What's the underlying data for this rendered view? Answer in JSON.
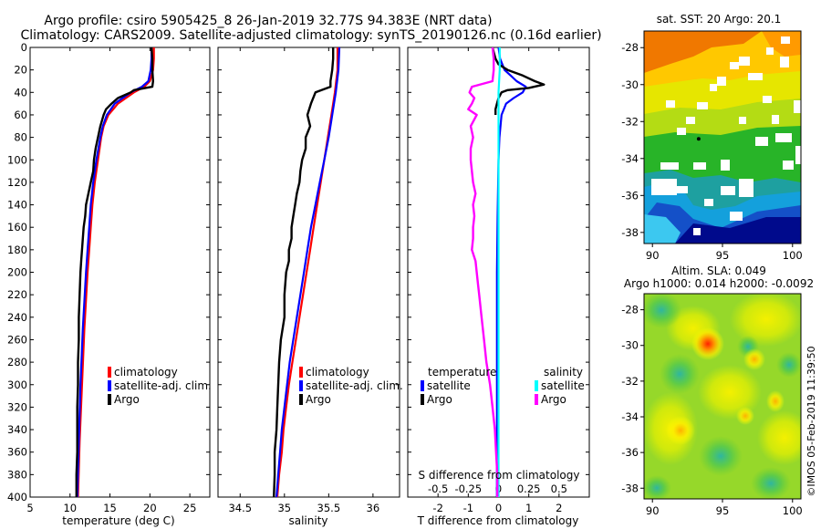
{
  "header": {
    "line1": "Argo profile: csiro 5905425_8 26-Jan-2019 32.77S 94.383E (NRT data)",
    "line2": "Climatology: CARS2009. Satellite-adjusted climatology: synTS_20190126.nc (0.16d earlier)"
  },
  "side": {
    "sst_title": "sat. SST: 20 Argo: 20.1",
    "sla_title1": "Altim. SLA: 0.049",
    "sla_title2": "Argo h1000: 0.014 h2000: -0.0092",
    "stamp": "©IMOS 05-Feb-2019 11:39:50"
  },
  "colors": {
    "climatology": "#ff0000",
    "satellite_adj": "#0000ff",
    "argo": "#000000",
    "temp_satellite": "#0000ff",
    "temp_argo": "#000000",
    "sal_satellite": "#00ffff",
    "sal_argo": "#ff00ff"
  },
  "legend": {
    "climatology": "climatology",
    "satellite_adj": "satellite-adj. clim.",
    "argo": "Argo",
    "temperature": "temperature",
    "salinity": "salinity",
    "satellite": "satellite"
  },
  "chart_data": [
    {
      "type": "line",
      "name": "temperature",
      "xlabel": "temperature (deg C)",
      "ylabel": "",
      "xlim": [
        5,
        27.5
      ],
      "ylim": [
        400,
        0
      ],
      "xticks": [
        5,
        10,
        15,
        20,
        25
      ],
      "yticks": [
        0,
        20,
        40,
        60,
        80,
        100,
        120,
        140,
        160,
        180,
        200,
        220,
        240,
        260,
        280,
        300,
        320,
        340,
        360,
        380,
        400
      ],
      "legend_position": "bottom-right",
      "series": [
        {
          "name": "climatology",
          "color_key": "climatology",
          "depth": [
            0,
            10,
            20,
            30,
            35,
            40,
            50,
            60,
            70,
            80,
            100,
            120,
            140,
            160,
            180,
            200,
            250,
            300,
            350,
            400
          ],
          "values": [
            20.5,
            20.5,
            20.4,
            20.0,
            19.3,
            18.0,
            16.0,
            14.8,
            14.2,
            13.9,
            13.5,
            13.1,
            12.8,
            12.6,
            12.4,
            12.2,
            11.8,
            11.5,
            11.2,
            11.0
          ]
        },
        {
          "name": "satellite-adj. clim.",
          "color_key": "satellite_adj",
          "depth": [
            0,
            10,
            20,
            30,
            35,
            40,
            50,
            60,
            70,
            80,
            100,
            120,
            140,
            160,
            180,
            200,
            250,
            300,
            350,
            400
          ],
          "values": [
            20.2,
            20.2,
            20.1,
            19.8,
            19.0,
            17.6,
            15.6,
            14.6,
            14.1,
            13.8,
            13.3,
            12.9,
            12.6,
            12.4,
            12.2,
            12.0,
            11.6,
            11.3,
            11.1,
            10.9
          ]
        },
        {
          "name": "Argo",
          "color_key": "argo",
          "depth": [
            0,
            10,
            20,
            30,
            35,
            38,
            40,
            45,
            50,
            55,
            60,
            70,
            80,
            90,
            100,
            110,
            120,
            130,
            140,
            150,
            160,
            170,
            180,
            190,
            200,
            220,
            240,
            260,
            280,
            300,
            320,
            340,
            360,
            380,
            400
          ],
          "values": [
            20.2,
            20.3,
            20.3,
            20.4,
            20.3,
            18.0,
            17.6,
            16.0,
            15.2,
            14.5,
            14.2,
            13.8,
            13.5,
            13.2,
            13.0,
            12.9,
            12.6,
            12.3,
            12.0,
            11.9,
            11.7,
            11.6,
            11.5,
            11.4,
            11.3,
            11.2,
            11.1,
            11.1,
            11.0,
            11.0,
            10.9,
            10.9,
            10.9,
            10.8,
            10.8
          ]
        }
      ]
    },
    {
      "type": "line",
      "name": "salinity",
      "xlabel": "salinity",
      "ylabel": "",
      "xlim": [
        34.25,
        36.3
      ],
      "ylim": [
        400,
        0
      ],
      "xticks": [
        34.5,
        35,
        35.5,
        36
      ],
      "legend_position": "bottom-right",
      "series": [
        {
          "name": "climatology",
          "color_key": "climatology",
          "depth": [
            0,
            20,
            40,
            60,
            80,
            100,
            120,
            140,
            160,
            180,
            200,
            220,
            240,
            260,
            280,
            300,
            320,
            340,
            360,
            380,
            400
          ],
          "values": [
            35.6,
            35.6,
            35.57,
            35.53,
            35.49,
            35.45,
            35.41,
            35.37,
            35.33,
            35.29,
            35.25,
            35.21,
            35.17,
            35.13,
            35.09,
            35.05,
            35.02,
            34.99,
            34.97,
            34.94,
            34.92
          ]
        },
        {
          "name": "satellite-adj. clim.",
          "color_key": "satellite_adj",
          "depth": [
            0,
            20,
            40,
            60,
            80,
            100,
            120,
            140,
            160,
            180,
            200,
            220,
            240,
            260,
            280,
            300,
            320,
            340,
            360,
            380,
            400
          ],
          "values": [
            35.62,
            35.61,
            35.58,
            35.54,
            35.5,
            35.45,
            35.4,
            35.35,
            35.3,
            35.26,
            35.22,
            35.18,
            35.14,
            35.1,
            35.06,
            35.03,
            35.0,
            34.97,
            34.95,
            34.93,
            34.91
          ]
        },
        {
          "name": "Argo",
          "color_key": "argo",
          "depth": [
            0,
            10,
            20,
            30,
            35,
            40,
            50,
            60,
            70,
            80,
            90,
            100,
            110,
            120,
            130,
            140,
            150,
            160,
            170,
            180,
            190,
            200,
            220,
            240,
            260,
            280,
            300,
            320,
            340,
            360,
            380,
            400
          ],
          "values": [
            35.55,
            35.55,
            35.54,
            35.52,
            35.52,
            35.35,
            35.3,
            35.26,
            35.29,
            35.24,
            35.24,
            35.2,
            35.18,
            35.17,
            35.14,
            35.12,
            35.1,
            35.08,
            35.08,
            35.05,
            35.05,
            35.02,
            35.0,
            35.0,
            34.96,
            34.94,
            34.93,
            34.92,
            34.91,
            34.89,
            34.89,
            34.88
          ]
        }
      ]
    },
    {
      "type": "line",
      "name": "difference",
      "xlabel": "T difference from climatology",
      "x2label": "S difference from climatology",
      "xlim": [
        -3.0,
        3.0
      ],
      "ylim": [
        400,
        0
      ],
      "xticks": [
        -2,
        -1,
        0,
        1,
        2
      ],
      "x2lim": [
        -0.75,
        0.75
      ],
      "x2ticks": [
        -0.5,
        -0.25,
        0,
        0.25,
        0.5
      ],
      "legend_position": "bottom",
      "series": [
        {
          "name": "temperature satellite",
          "color_key": "temp_satellite",
          "axis": "T",
          "depth": [
            0,
            10,
            20,
            25,
            30,
            35,
            40,
            45,
            50,
            60,
            80,
            100,
            150,
            200,
            250,
            300,
            350,
            400
          ],
          "values": [
            0,
            0.05,
            0.2,
            0.4,
            0.6,
            0.9,
            0.8,
            0.5,
            0.25,
            0.1,
            0.03,
            0.0,
            -0.03,
            -0.05,
            -0.05,
            -0.05,
            -0.05,
            -0.05
          ]
        },
        {
          "name": "temperature Argo",
          "color_key": "temp_argo",
          "axis": "T",
          "depth": [
            0,
            5,
            10,
            15,
            20,
            25,
            30,
            33,
            36,
            38,
            40,
            45,
            50,
            55,
            60
          ],
          "values": [
            -0.2,
            -0.15,
            -0.1,
            0.0,
            0.3,
            0.8,
            1.2,
            1.5,
            1.0,
            0.3,
            0.1,
            0.0,
            -0.05,
            -0.1,
            -0.1
          ]
        },
        {
          "name": "salinity satellite",
          "color_key": "sal_satellite",
          "axis": "S",
          "depth": [
            0,
            20,
            40,
            60,
            80,
            100,
            150,
            200,
            250,
            300,
            350,
            400
          ],
          "values": [
            0.01,
            0.01,
            0.0,
            0.0,
            0.0,
            0.0,
            0.0,
            0.0,
            0.0,
            0.0,
            0.0,
            0.0
          ]
        },
        {
          "name": "salinity Argo",
          "color_key": "sal_argo",
          "axis": "S",
          "depth": [
            0,
            10,
            20,
            30,
            35,
            40,
            45,
            50,
            55,
            60,
            70,
            80,
            90,
            100,
            110,
            120,
            130,
            140,
            150,
            160,
            170,
            180,
            190,
            200,
            210,
            220,
            240,
            260,
            280,
            300,
            320,
            340,
            360,
            380,
            400
          ],
          "values": [
            -0.05,
            -0.04,
            -0.04,
            -0.05,
            -0.22,
            -0.24,
            -0.2,
            -0.22,
            -0.25,
            -0.18,
            -0.23,
            -0.21,
            -0.23,
            -0.23,
            -0.22,
            -0.21,
            -0.19,
            -0.21,
            -0.2,
            -0.21,
            -0.21,
            -0.22,
            -0.19,
            -0.18,
            -0.17,
            -0.16,
            -0.14,
            -0.12,
            -0.1,
            -0.07,
            -0.05,
            -0.03,
            -0.02,
            -0.01,
            -0.01
          ]
        }
      ]
    },
    {
      "type": "heatmap",
      "name": "sst_map",
      "xticks": [
        90,
        95,
        100
      ],
      "yticks": [
        -28,
        -30,
        -32,
        -34,
        -36,
        -38
      ],
      "xlim": [
        89.4,
        100.6
      ],
      "ylim": [
        -38.6,
        -27.1
      ],
      "profile_marker": {
        "lon": 94.383,
        "lat": -32.77
      }
    },
    {
      "type": "heatmap",
      "name": "sla_map",
      "xticks": [
        90,
        95,
        100
      ],
      "yticks": [
        -28,
        -30,
        -32,
        -34,
        -36,
        -38
      ],
      "xlim": [
        89.4,
        100.6
      ],
      "ylim": [
        -38.6,
        -27.1
      ],
      "profile_marker": {
        "lon": 94.383,
        "lat": -32.77
      }
    }
  ]
}
